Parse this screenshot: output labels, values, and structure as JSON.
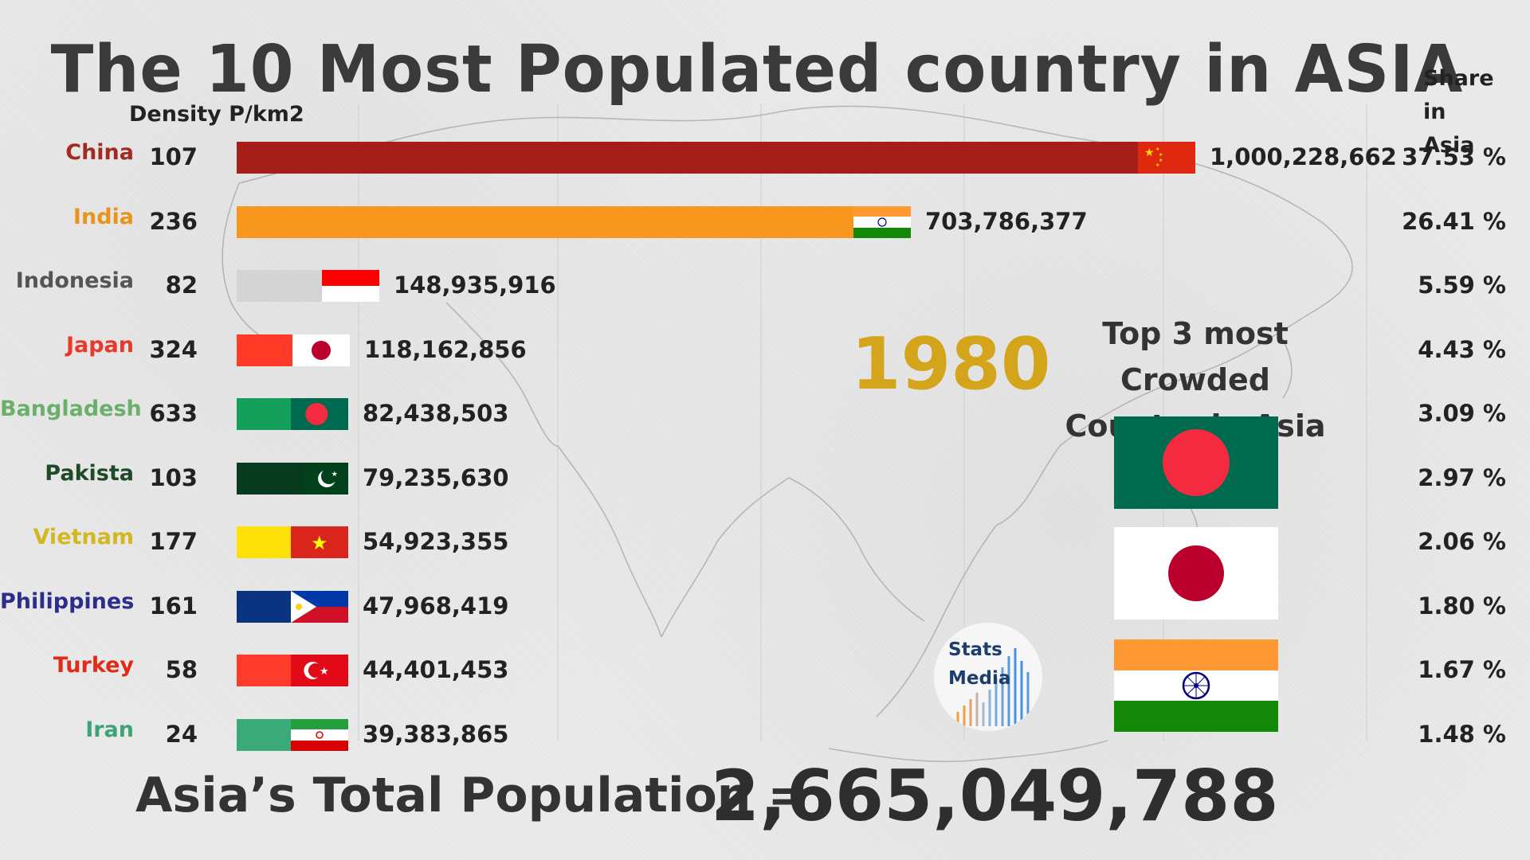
{
  "title": "The 10 Most Populated country in ASIA",
  "density_header": "Density P/km2",
  "share_header": [
    "Share in",
    "Asia"
  ],
  "year": "1980",
  "top3": {
    "title": [
      "Top 3 most Crowded",
      "Country in Asia"
    ],
    "flags": [
      "bangladesh-flag",
      "japan-flag",
      "india-flag"
    ]
  },
  "total": {
    "label": "Asia’s Total Population =",
    "value": "2,665,049,788"
  },
  "logo": {
    "line1": "Stats",
    "line2": "Media"
  },
  "chart_data": {
    "type": "bar",
    "orientation": "horizontal",
    "title": "The 10 Most Populated country in ASIA",
    "xlim": [
      0,
      1000228662
    ],
    "categories": [
      "China",
      "India",
      "Indonesia",
      "Japan",
      "Bangladesh",
      "Pakista",
      "Vietnam",
      "Philippines",
      "Turkey",
      "Iran"
    ],
    "values": [
      1000228662,
      703786377,
      148935916,
      118162856,
      82438503,
      79235630,
      54923355,
      47968419,
      44401453,
      39383865
    ],
    "value_labels": [
      "1,000,228,662",
      "703,786,377",
      "148,935,916",
      "118,162,856",
      "82,438,503",
      "79,235,630",
      "54,923,355",
      "47,968,419",
      "44,401,453",
      "39,383,865"
    ],
    "density": [
      "107",
      "236",
      "82",
      "324",
      "633",
      "103",
      "177",
      "161",
      "58",
      "24"
    ],
    "share": [
      "37.53 %",
      "26.41 %",
      "5.59 %",
      "4.43 %",
      "3.09 %",
      "2.97 %",
      "2.06 %",
      "1.80 %",
      "1.67 %",
      "1.48 %"
    ],
    "label_colors": [
      "#a32a22",
      "#e8941a",
      "#555555",
      "#e8392a",
      "#6ab06a",
      "#1f4a2a",
      "#d2b81e",
      "#2d2d8a",
      "#e02a1a",
      "#3fa37a"
    ],
    "bar_colors": [
      "#a61e18",
      "#f7971d",
      "#d4d4d4",
      "#ff3a26",
      "#14a05a",
      "#083a1e",
      "#ffe10a",
      "#0a3380",
      "#ff3b2a",
      "#3aaa78"
    ],
    "flags": [
      "china-flag",
      "india-flag",
      "indonesia-flag",
      "japan-flag",
      "bangladesh-flag",
      "pakistan-flag",
      "vietnam-flag",
      "philippines-flag",
      "turkey-flag",
      "iran-flag"
    ]
  }
}
